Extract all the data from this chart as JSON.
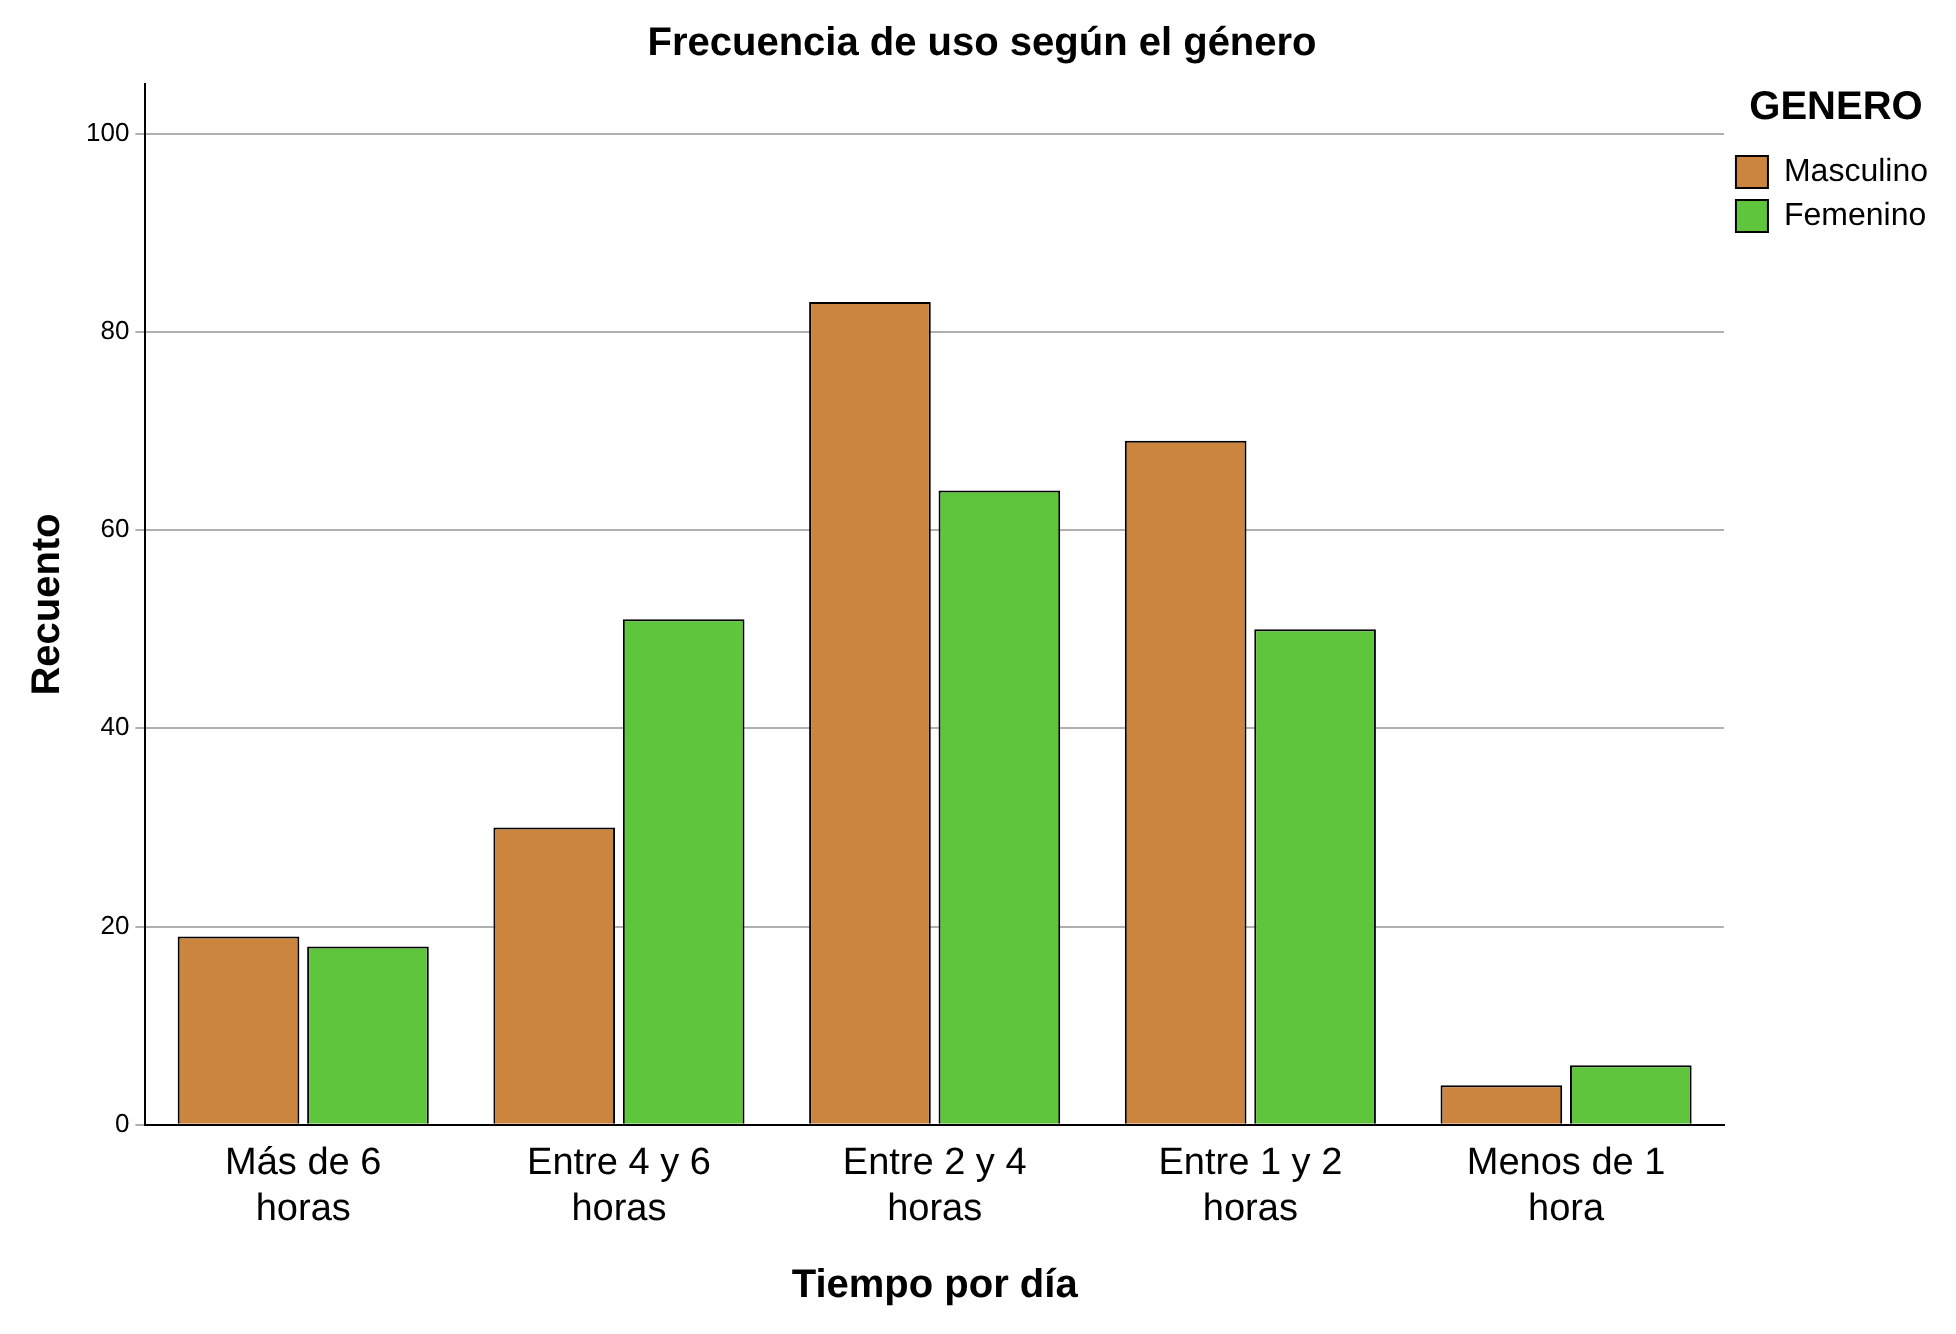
{
  "chart_data": {
    "type": "bar",
    "title": "Frecuencia de uso según el género",
    "xlabel": "Tiempo por día",
    "ylabel": "Recuento",
    "legend_title": "GENERO",
    "categories": [
      "Más de 6 horas",
      "Entre 4 y 6 horas",
      "Entre 2 y 4 horas",
      "Entre 1 y 2 horas",
      "Menos de 1 hora"
    ],
    "series": [
      {
        "name": "Masculino",
        "color": "#cc853f",
        "values": [
          19,
          30,
          83,
          69,
          4
        ]
      },
      {
        "name": "Femenino",
        "color": "#5ec53c",
        "values": [
          18,
          51,
          64,
          50,
          6
        ]
      }
    ],
    "ylim": [
      0,
      105
    ],
    "yticks": [
      0,
      20,
      40,
      60,
      80,
      100
    ],
    "grid": "y",
    "legend": "top right"
  }
}
